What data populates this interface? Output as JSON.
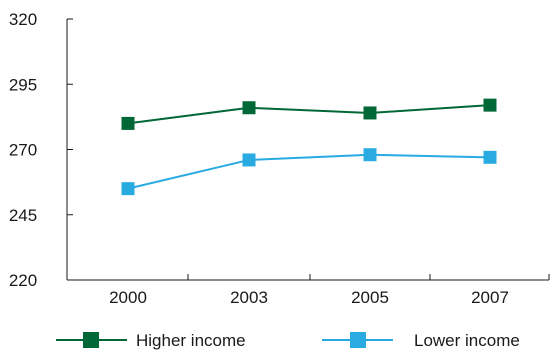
{
  "chart_data": {
    "type": "line",
    "categories": [
      "2000",
      "2003",
      "2005",
      "2007"
    ],
    "yticks": [
      "220",
      "245",
      "270",
      "295",
      "320"
    ],
    "ylim": [
      220,
      320
    ],
    "grid": false,
    "legend_position": "bottom",
    "series": [
      {
        "name": "Higher income",
        "values": [
          280,
          286,
          284,
          287
        ],
        "color": "#006837",
        "marker": "square"
      },
      {
        "name": "Lower income",
        "values": [
          255,
          266,
          268,
          267
        ],
        "color": "#29abe2",
        "marker": "square"
      }
    ]
  }
}
